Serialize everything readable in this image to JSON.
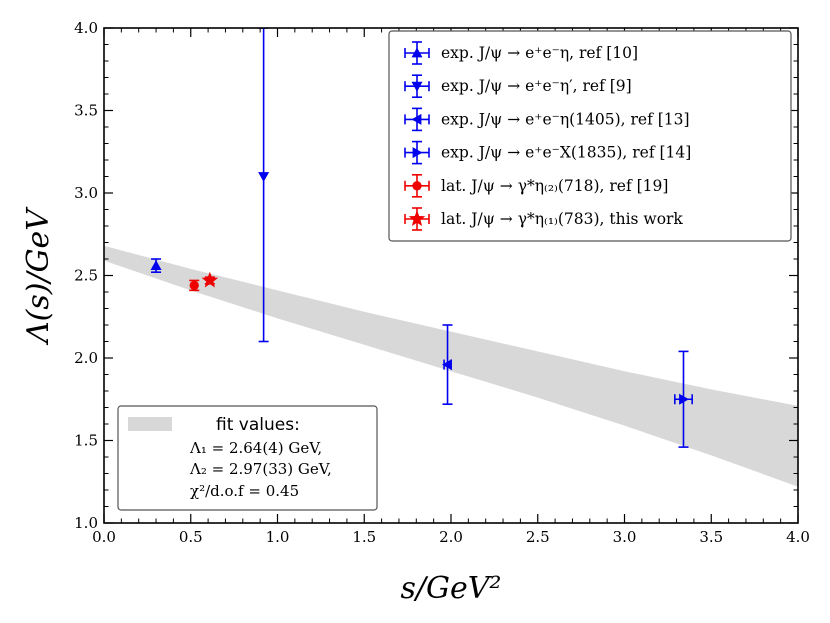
{
  "chart_data": {
    "type": "scatter",
    "xlabel": "s/GeV²",
    "ylabel": "Λ(s)/GeV",
    "xlim": [
      0.0,
      4.0
    ],
    "ylim": [
      1.0,
      4.0
    ],
    "xticks": [
      "0.0",
      "0.5",
      "1.0",
      "1.5",
      "2.0",
      "2.5",
      "3.0",
      "3.5",
      "4.0"
    ],
    "yticks": [
      "1.0",
      "1.5",
      "2.0",
      "2.5",
      "3.0",
      "3.5",
      "4.0"
    ],
    "grid": false,
    "legend_position": "top-right",
    "series": [
      {
        "name": "exp. J/ψ → e⁺e⁻η,  ref [10]",
        "color": "#0000ee",
        "marker": "triangle-up",
        "points": [
          {
            "x": 0.3,
            "y": 2.56,
            "yerr": 0.04,
            "xerr": 0.0
          }
        ]
      },
      {
        "name": "exp. J/ψ → e⁺e⁻η′,  ref [9]",
        "color": "#0000ee",
        "marker": "triangle-down",
        "points": [
          {
            "x": 0.92,
            "y": 3.1,
            "yerr_low": 1.0,
            "yerr_high": 0.9,
            "xerr": 0.0
          }
        ]
      },
      {
        "name": "exp. J/ψ → e⁺e⁻η(1405),  ref [13]",
        "color": "#0000ee",
        "marker": "triangle-left",
        "points": [
          {
            "x": 1.98,
            "y": 1.96,
            "yerr": 0.24,
            "xerr": 0.02
          }
        ]
      },
      {
        "name": "exp. J/ψ → e⁺e⁻X(1835),  ref [14]",
        "color": "#0000ee",
        "marker": "triangle-right",
        "points": [
          {
            "x": 3.34,
            "y": 1.75,
            "yerr": 0.29,
            "xerr": 0.05
          }
        ]
      },
      {
        "name": "lat. J/ψ → γ*η₍₂₎(718),  ref [19]",
        "color": "#ee0000",
        "marker": "circle",
        "points": [
          {
            "x": 0.52,
            "y": 2.44,
            "yerr": 0.03,
            "xerr": 0.0
          }
        ]
      },
      {
        "name": "lat. J/ψ → γ*η₍₁₎(783),  this work",
        "color": "#ee0000",
        "marker": "star",
        "points": [
          {
            "x": 0.61,
            "y": 2.47,
            "yerr": 0.02,
            "xerr": 0.0
          }
        ]
      }
    ],
    "fit_band": {
      "x": [
        0.0,
        0.5,
        1.0,
        1.5,
        2.0,
        2.5,
        3.0,
        3.5,
        4.0
      ],
      "upper": [
        2.68,
        2.54,
        2.41,
        2.28,
        2.16,
        2.04,
        1.92,
        1.81,
        1.71
      ],
      "lower": [
        2.59,
        2.41,
        2.24,
        2.08,
        1.92,
        1.76,
        1.59,
        1.41,
        1.22
      ],
      "color": "#d8d8d8"
    },
    "fit_box": {
      "title": "fit values:",
      "lines": [
        "Λ₁ = 2.64(4) GeV,",
        "Λ₂ = 2.97(33) GeV,",
        "χ²/d.o.f = 0.45"
      ]
    }
  }
}
